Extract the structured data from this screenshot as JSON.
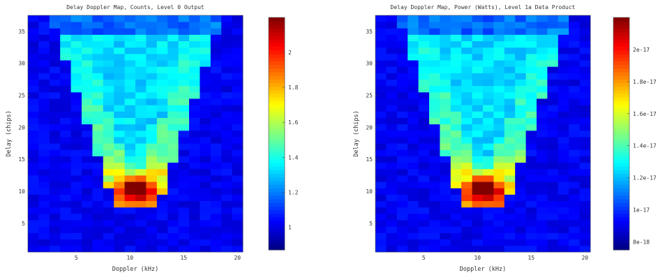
{
  "chart_data": [
    {
      "type": "heatmap",
      "title": "Delay Doppler Map, Counts, Level 0 Output",
      "xlabel": "Doppler (kHz)",
      "ylabel": "Delay (chips)",
      "x_ticks": [
        5,
        10,
        15,
        20
      ],
      "y_ticks": [
        5,
        10,
        15,
        20,
        25,
        30,
        35
      ],
      "xlim": [
        0.5,
        20.5
      ],
      "ylim": [
        0.5,
        37.5
      ],
      "grid": false,
      "colormap": "jet",
      "colorbar": {
        "range": [
          0.87,
          2.2
        ],
        "ticks": [
          1,
          1.2,
          1.4,
          1.6,
          1.8,
          2
        ],
        "tick_labels": [
          "1",
          "1.2",
          "1.4",
          "1.6",
          "1.8",
          "2"
        ]
      },
      "value_range": [
        0.87,
        2.2
      ],
      "pattern": "V-shaped horseshoe of elevated counts opening upward from delay ~8 chips; peak around doppler 10-11 kHz, delay 9-12 chips"
    },
    {
      "type": "heatmap",
      "title": "Delay Doppler Map, Power (Watts), Level 1a Data Product",
      "xlabel": "Doppler (kHz)",
      "ylabel": "Delay (chips)",
      "x_ticks": [
        5,
        10,
        15,
        20
      ],
      "y_ticks": [
        5,
        10,
        15,
        20,
        25,
        30,
        35
      ],
      "xlim": [
        0.5,
        20.5
      ],
      "ylim": [
        0.5,
        37.5
      ],
      "grid": false,
      "colormap": "jet",
      "colorbar": {
        "range": [
          7.5e-18,
          2.2e-17
        ],
        "ticks": [
          8e-18,
          1e-17,
          1.2e-17,
          1.4e-17,
          1.6e-17,
          1.8e-17,
          2e-17
        ],
        "tick_labels": [
          "8e-18",
          "1e-17",
          "1.2e-17",
          "1.4e-17",
          "1.6e-17",
          "1.8e-17",
          "2e-17"
        ]
      },
      "value_range": [
        7.5e-18,
        2.2e-17
      ],
      "pattern": "V-shaped horseshoe of elevated power opening upward from delay ~8 chips; peak around doppler 10-11 kHz, delay 9-12 chips"
    }
  ]
}
